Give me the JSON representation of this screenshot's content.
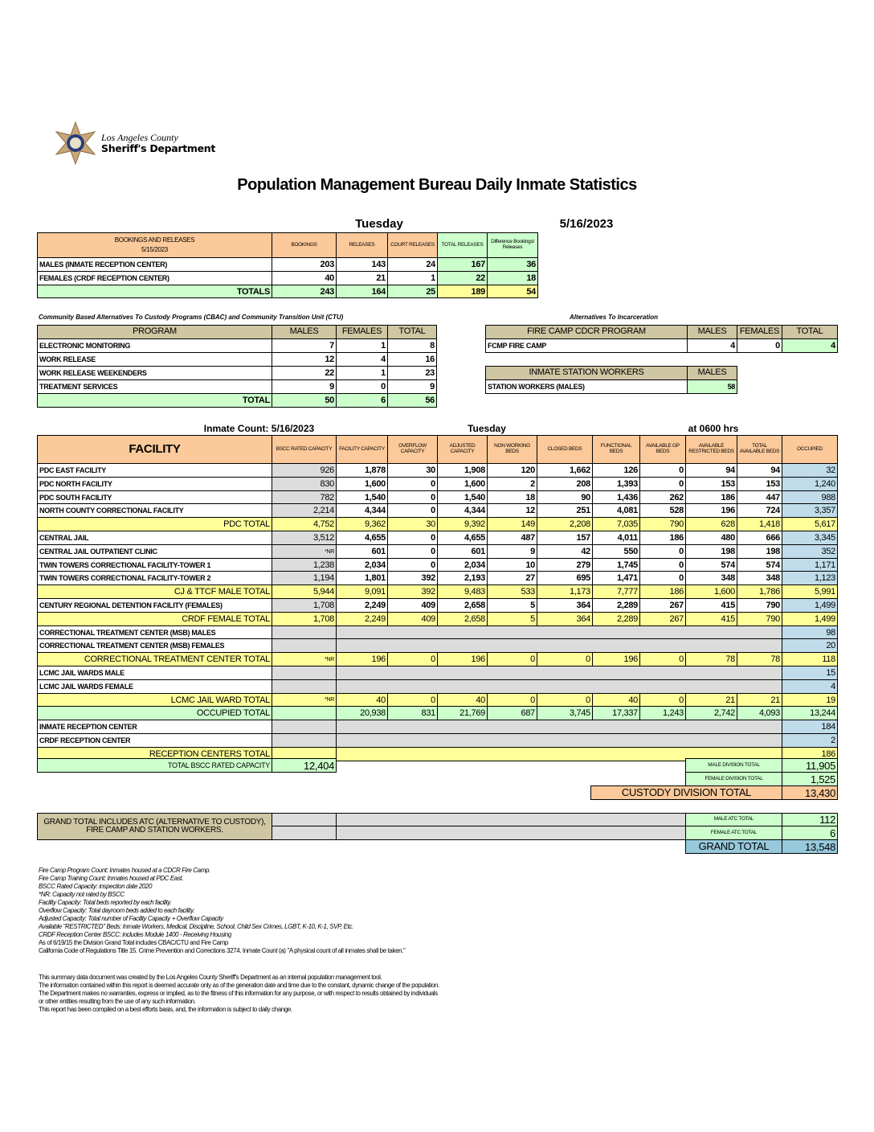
{
  "logo": {
    "line1": "Los Angeles County",
    "line2": "Sheriff's Department"
  },
  "title": "Population Management Bureau Daily Inmate Statistics",
  "day": "Tuesday",
  "date": "5/16/2023",
  "bookings": {
    "title": "BOOKINGS AND RELEASES",
    "date": "5/15/2023",
    "headers": [
      "BOOKINGS",
      "RELEASES",
      "COURT RELEASES",
      "TOTAL RELEASES",
      "Difference Bookings/ Releases"
    ],
    "rows": [
      {
        "name": "MALES (INMATE RECEPTION CENTER)",
        "values": [
          "203",
          "143",
          "24",
          "167",
          "36"
        ]
      },
      {
        "name": "FEMALES (CRDF RECEPTION CENTER)",
        "values": [
          "40",
          "21",
          "1",
          "22",
          "18"
        ]
      }
    ],
    "totals": {
      "name": "TOTALS",
      "values": [
        "243",
        "164",
        "25",
        "189",
        "54"
      ]
    }
  },
  "cbac": {
    "caption": "Community Based Alternatives To Custody Programs (CBAC) and Community Transition Unit (CTU)",
    "headers": [
      "PROGRAM",
      "MALES",
      "FEMALES",
      "TOTAL"
    ],
    "rows": [
      {
        "name": "ELECTRONIC MONITORING",
        "values": [
          "7",
          "1",
          "8"
        ]
      },
      {
        "name": "WORK RELEASE",
        "values": [
          "12",
          "4",
          "16"
        ]
      },
      {
        "name": "WORK RELEASE WEEKENDERS",
        "values": [
          "22",
          "1",
          "23"
        ]
      },
      {
        "name": "TREATMENT SERVICES",
        "values": [
          "9",
          "0",
          "9"
        ]
      }
    ],
    "total": {
      "name": "TOTAL",
      "values": [
        "50",
        "6",
        "56"
      ]
    }
  },
  "ati": {
    "caption": "Alternatives To Incarceration",
    "fire_headers": [
      "FIRE CAMP CDCR PROGRAM",
      "MALES",
      "FEMALES",
      "TOTAL"
    ],
    "fire_row": {
      "name": "FCMP FIRE CAMP",
      "values": [
        "4",
        "0",
        "4"
      ]
    },
    "station_headers": [
      "INMATE STATION WORKERS",
      "MALES"
    ],
    "station_row": {
      "name": "STATION WORKERS (MALES)",
      "value": "58"
    }
  },
  "count": {
    "label": "Inmate Count: 5/16/2023",
    "day": "Tuesday",
    "time": "at 0600 hrs"
  },
  "facility": {
    "headers": [
      "FACILITY",
      "BSCC RATED CAPACITY",
      "FACILITY CAPACITY",
      "OVERFLOW CAPACITY",
      "ADJUSTED CAPACITY",
      "NON WORKING BEDS",
      "CLOSED BEDS",
      "FUNCTIONAL BEDS",
      "AVAILABLE GP BEDS",
      "AVAILABLE RESTRICTED BEDS",
      "TOTAL AVAILABLE BEDS",
      "OCCUPIED"
    ],
    "rows": [
      {
        "name": "PDC EAST FACILITY",
        "type": "row",
        "values": [
          "926",
          "1,878",
          "30",
          "1,908",
          "120",
          "1,662",
          "126",
          "0",
          "94",
          "94",
          "32"
        ]
      },
      {
        "name": "PDC NORTH FACILITY",
        "type": "row",
        "values": [
          "830",
          "1,600",
          "0",
          "1,600",
          "2",
          "208",
          "1,393",
          "0",
          "153",
          "153",
          "1,240"
        ]
      },
      {
        "name": "PDC SOUTH FACILITY",
        "type": "row",
        "values": [
          "782",
          "1,540",
          "0",
          "1,540",
          "18",
          "90",
          "1,436",
          "262",
          "186",
          "447",
          "988"
        ]
      },
      {
        "name": "NORTH COUNTY CORRECTIONAL FACILITY",
        "type": "row",
        "values": [
          "2,214",
          "4,344",
          "0",
          "4,344",
          "12",
          "251",
          "4,081",
          "528",
          "196",
          "724",
          "3,357"
        ]
      },
      {
        "name": "PDC TOTAL",
        "type": "total",
        "values": [
          "4,752",
          "9,362",
          "30",
          "9,392",
          "149",
          "2,208",
          "7,035",
          "790",
          "628",
          "1,418",
          "5,617"
        ]
      },
      {
        "name": "CENTRAL JAIL",
        "type": "row",
        "values": [
          "3,512",
          "4,655",
          "0",
          "4,655",
          "487",
          "157",
          "4,011",
          "186",
          "480",
          "666",
          "3,345"
        ]
      },
      {
        "name": "CENTRAL JAIL OUTPATIENT CLINIC",
        "type": "row",
        "values": [
          "*NR",
          "601",
          "0",
          "601",
          "9",
          "42",
          "550",
          "0",
          "198",
          "198",
          "352"
        ]
      },
      {
        "name": "TWIN TOWERS CORRECTIONAL FACILITY-TOWER 1",
        "type": "row",
        "values": [
          "1,238",
          "2,034",
          "0",
          "2,034",
          "10",
          "279",
          "1,745",
          "0",
          "574",
          "574",
          "1,171"
        ]
      },
      {
        "name": "TWIN TOWERS CORRECTIONAL FACILITY-TOWER 2",
        "type": "row",
        "values": [
          "1,194",
          "1,801",
          "392",
          "2,193",
          "27",
          "695",
          "1,471",
          "0",
          "348",
          "348",
          "1,123"
        ]
      },
      {
        "name": "CJ & TTCF MALE TOTAL",
        "type": "total",
        "values": [
          "5,944",
          "9,091",
          "392",
          "9,483",
          "533",
          "1,173",
          "7,777",
          "186",
          "1,600",
          "1,786",
          "5,991"
        ]
      },
      {
        "name": "CENTURY REGIONAL DETENTION FACILITY (FEMALES)",
        "type": "row",
        "values": [
          "1,708",
          "2,249",
          "409",
          "2,658",
          "5",
          "364",
          "2,289",
          "267",
          "415",
          "790",
          "1,499"
        ]
      },
      {
        "name": "CRDF FEMALE TOTAL",
        "type": "total",
        "values": [
          "1,708",
          "2,249",
          "409",
          "2,658",
          "5",
          "364",
          "2,289",
          "267",
          "415",
          "790",
          "1,499"
        ]
      },
      {
        "name": "CORRECTIONAL TREATMENT CENTER (MSB) MALES",
        "type": "span",
        "occupied": "98"
      },
      {
        "name": "CORRECTIONAL TREATMENT CENTER (MSB) FEMALES",
        "type": "span",
        "occupied": "20"
      },
      {
        "name": "CORRECTIONAL TREATMENT CENTER  TOTAL",
        "type": "total",
        "values": [
          "*NR",
          "196",
          "0",
          "196",
          "0",
          "0",
          "196",
          "0",
          "78",
          "78",
          "118"
        ]
      },
      {
        "name": "LCMC JAIL WARDS MALE",
        "type": "span",
        "occupied": "15"
      },
      {
        "name": "LCMC JAIL WARDS FEMALE",
        "type": "span",
        "occupied": "4"
      },
      {
        "name": "LCMC JAIL WARD TOTAL",
        "type": "total",
        "values": [
          "*NR",
          "40",
          "0",
          "40",
          "0",
          "0",
          "40",
          "0",
          "21",
          "21",
          "19"
        ]
      },
      {
        "name": "OCCUPIED TOTAL",
        "type": "green",
        "values": [
          "",
          "20,938",
          "831",
          "21,769",
          "687",
          "3,745",
          "17,337",
          "1,243",
          "2,742",
          "4,093",
          "13,244"
        ]
      },
      {
        "name": "INMATE RECEPTION CENTER",
        "type": "span",
        "occupied": "184"
      },
      {
        "name": "CRDF RECEPTION CENTER",
        "type": "span",
        "occupied": "2"
      },
      {
        "name": "RECEPTION CENTERS TOTAL",
        "type": "yspan",
        "occupied": "186"
      }
    ],
    "bscc_total": {
      "label": "TOTAL BSCC RATED CAPACITY",
      "value": "12,404"
    }
  },
  "division": {
    "male_label": "MALE DIVISION TOTAL",
    "male": "11,905",
    "female_label": "FEMALE DIVISION TOTAL",
    "female": "1,525",
    "custody_label": "CUSTODY DIVISION TOTAL",
    "custody": "13,430"
  },
  "grand": {
    "note": "GRAND TOTAL INCLUDES ATC (ALTERNATIVE TO CUSTODY), FIRE CAMP AND STATION WORKERS.",
    "male_atc_label": "MALE ATC TOTAL",
    "male_atc": "112",
    "female_atc_label": "FEMALE ATC TOTAL",
    "female_atc": "6",
    "grand_label": "GRAND TOTAL",
    "grand": "13,548"
  },
  "notes": [
    "Fire Camp Program Count: Inmates housed at a CDCR Fire Camp.",
    "Fire Camp Training Count: Inmates housed at PDC East.",
    "BSCC Rated Capacity: inspection date 2020",
    "*NR: Capacity not rated by BSCC",
    "Facility Capacity: Total beds reported by each facility.",
    "Overflow Capacity: Total dayroom beds added to each facility.",
    "Adjusted Capacity: Total number of Facility Capacity + Overflow Capacity",
    "Available \"RESTRICTED\" Beds: Inmate Workers, Medical, Discipline, School, Child Sex Crimes,  LGBT, K-10, K-1, SVP, Etc.",
    "CRDF Reception Center BSCC: includes Module 1400 - Receiving Housing",
    "As of 6/19/15 the Division Grand Total includes CBAC/CTU and Fire Camp",
    "California Code of Regulations Title 15. Crime Prevention and Corrections 3274. Inmate Count (a) \"A physical count of all inmates shall be taken.\""
  ],
  "disclaimer": [
    "This summary data document was created by the Los Angeles County Sheriff's Department as an internal population management tool.",
    "The information contained within this report is deemed accurate only as of the generation date and time due to the constant, dynamic change of the population.",
    "The Department makes no warranties, express or implied, as to the fitness of this information for any purpose, or with respect to results obtained by individuals",
    "or other entities resulting  from the use of any such information.",
    "This report has been compiled on a best efforts basis, and, the information is subject to daily change."
  ]
}
